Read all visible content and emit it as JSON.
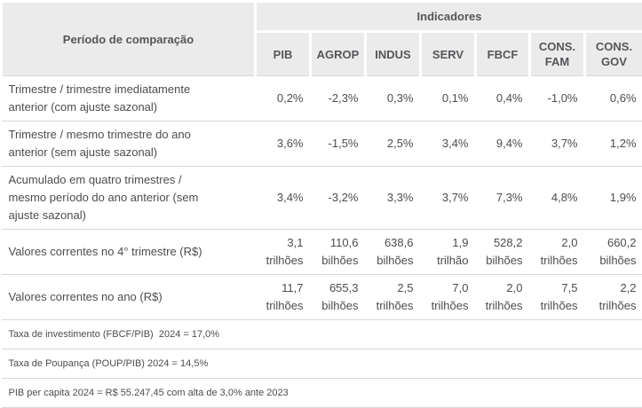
{
  "chart_data": {
    "type": "table",
    "title": "Indicadores",
    "row_header_label": "Período de comparação",
    "columns": [
      "PIB",
      "AGROP",
      "INDUS",
      "SERV",
      "FBCF",
      "CONS. FAM",
      "CONS. GOV"
    ],
    "rows": [
      {
        "label": "Trimestre / trimestre imediatamente anterior (com ajuste sazonal)",
        "values": [
          "0,2%",
          "-2,3%",
          "0,3%",
          "0,1%",
          "0,4%",
          "-1,0%",
          "0,6%"
        ]
      },
      {
        "label": "Trimestre / mesmo trimestre do ano anterior (sem ajuste sazonal)",
        "values": [
          "3,6%",
          "-1,5%",
          "2,5%",
          "3,4%",
          "9,4%",
          "3,7%",
          "1,2%"
        ]
      },
      {
        "label": "Acumulado em quatro trimestres / mesmo período do ano anterior (sem ajuste sazonal)",
        "values": [
          "3,4%",
          "-3,2%",
          "3,3%",
          "3,7%",
          "7,3%",
          "4,8%",
          "1,9%"
        ]
      },
      {
        "label": "Valores correntes no 4° trimestre (R$)",
        "values": [
          "3,1 trilhões",
          "110,6 bilhões",
          "638,6 bilhões",
          "1,9 trilhão",
          "528,2 bilhões",
          "2,0 trilhões",
          "660,2 bilhões"
        ]
      },
      {
        "label": "Valores correntes no ano (R$)",
        "values": [
          "11,7 trilhões",
          "655,3 bilhões",
          "2,5 trilhões",
          "7,0 trilhões",
          "2,0 trilhões",
          "7,5 trilhões",
          "2,2 trilhões"
        ]
      }
    ],
    "notes": [
      "Taxa de investimento (FBCF/PIB)  2024 = 17,0%",
      "Taxa de Poupança (POUP/PIB) 2024 = 14,5%",
      "PIB per capita 2024 = R$ 55.247,45 com alta de 3,0% ante 2023"
    ],
    "layout": {
      "legend_position": "none",
      "grid": "horizontal-row-separators",
      "numeric_cell_alignment": "right"
    },
    "colors": {
      "header_background": "#ebebeb",
      "header_text": "#54565a",
      "body_text": "#4c4d4f",
      "row_divider": "#d8d8d8",
      "header_gridline": "#ffffff"
    }
  }
}
